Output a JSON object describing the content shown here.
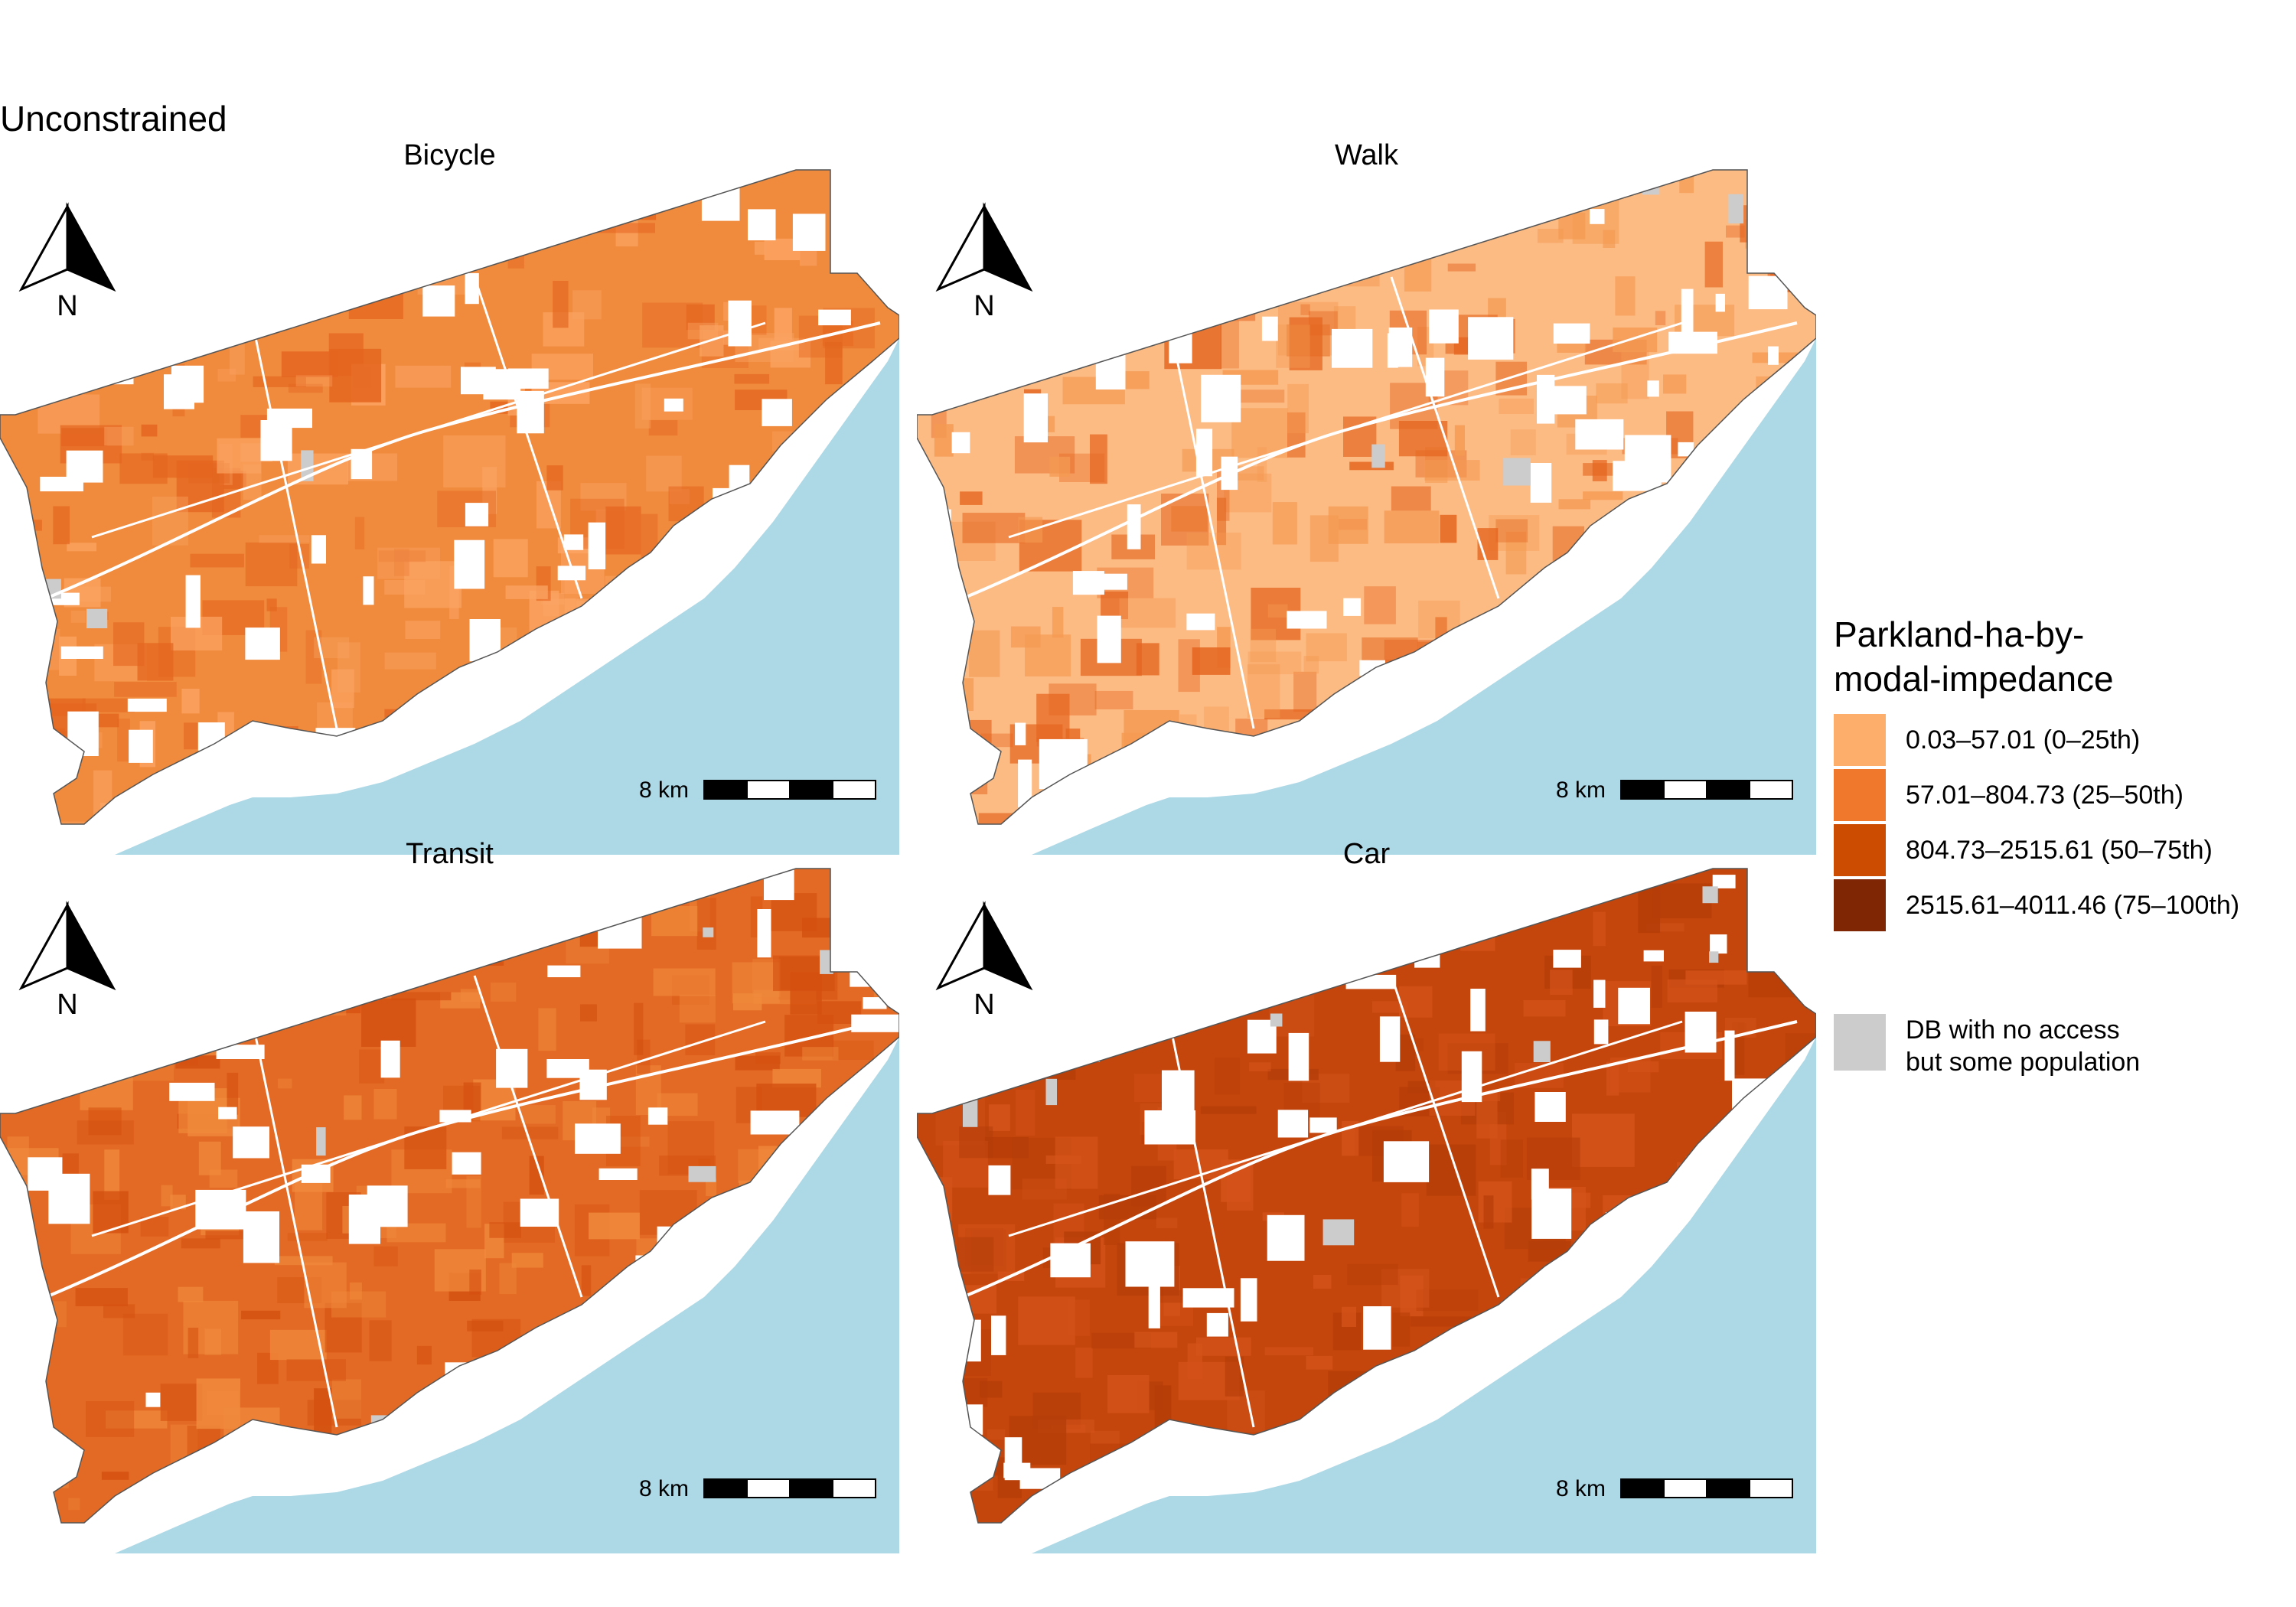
{
  "figure": {
    "title": "Unconstrained"
  },
  "colors": {
    "water": "#add8e6",
    "na": "#cccccc",
    "land_boundary": "#555555",
    "white_gap": "#ffffff"
  },
  "panels": [
    {
      "title": "Bicycle",
      "base_color": "#f08a3c",
      "accent_colors": [
        "#fba463",
        "#e4651f"
      ],
      "north_label": "N",
      "scale_label": "8 km"
    },
    {
      "title": "Walk",
      "base_color": "#fdbb84",
      "accent_colors": [
        "#f49a52",
        "#e4651f"
      ],
      "north_label": "N",
      "scale_label": "8 km"
    },
    {
      "title": "Transit",
      "base_color": "#e36a24",
      "accent_colors": [
        "#f08a3c",
        "#d4500f"
      ],
      "north_label": "N",
      "scale_label": "8 km"
    },
    {
      "title": "Car",
      "base_color": "#c4460c",
      "accent_colors": [
        "#b53d08",
        "#d4531a"
      ],
      "north_label": "N",
      "scale_label": "8 km"
    }
  ],
  "legend": {
    "title_line1": "Parkland-ha-by-",
    "title_line2": "modal-impedance",
    "items": [
      {
        "label": "0.03–57.01 (0–25th)",
        "color": "#fdae6b"
      },
      {
        "label": "57.01–804.73 (25–50th)",
        "color": "#f0782d"
      },
      {
        "label": "804.73–2515.61 (50–75th)",
        "color": "#cc4c02"
      },
      {
        "label": "2515.61–4011.46 (75–100th)",
        "color": "#7f2704"
      }
    ],
    "na_label_line1": "DB with no access",
    "na_label_line2": "but some population",
    "na_color": "#cccccc"
  }
}
